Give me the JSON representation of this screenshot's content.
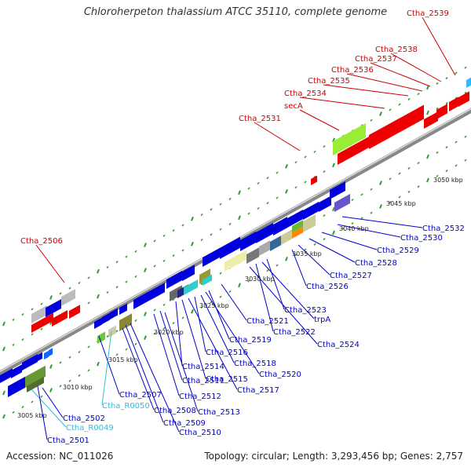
{
  "title": "Chloroherpeton thalassium ATCC 35110, complete genome",
  "footer": {
    "accession": "Accession: NC_011026",
    "summary": "Topology: circular; Length: 3,293,456 bp; Genes: 2,757"
  },
  "colors": {
    "backbone": "#999999",
    "red_label": "#cc0000",
    "blue_label": "#0000cc",
    "cyan_label": "#33bbdd",
    "tick": "#339933"
  },
  "scale_labels": [
    "3005 kbp",
    "3010 kbp",
    "3015 kbp",
    "3020 kbp",
    "3025 kbp",
    "3030 kbp",
    "3035 kbp",
    "3040 kbp",
    "3045 kbp",
    "3050 kbp"
  ],
  "upper_labels": [
    "Ctha_2539",
    "Ctha_2538",
    "Ctha_2537",
    "Ctha_2536",
    "Ctha_2535",
    "Ctha_2534",
    "secA",
    "Ctha_2531",
    "Ctha_2506"
  ],
  "lower_labels": [
    "Ctha_2532",
    "Ctha_2530",
    "Ctha_2529",
    "Ctha_2528",
    "Ctha_2527",
    "Ctha_2526",
    "Ctha_2523",
    "trpA",
    "Ctha_2522",
    "Ctha_2524",
    "Ctha_2521",
    "Ctha_2519",
    "Ctha_2516",
    "Ctha_2518",
    "Ctha_2520",
    "Ctha_2514",
    "Ctha_2515",
    "Ctha_2517",
    "Ctha_2511",
    "Ctha_2512",
    "Ctha_2513",
    "Ctha_2507",
    "Ctha_R0050",
    "Ctha_2508",
    "Ctha_2509",
    "Ctha_2510",
    "Ctha_2502",
    "Ctha_R0049",
    "Ctha_2501"
  ]
}
